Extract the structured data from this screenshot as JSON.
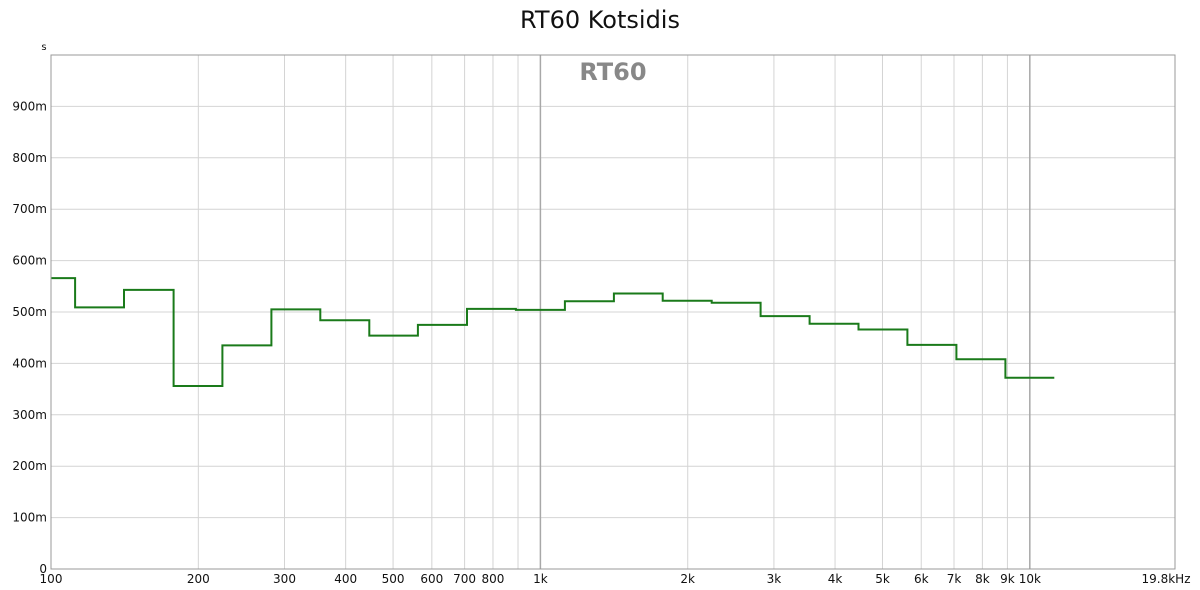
{
  "chart_data": {
    "type": "line",
    "title": "RT60 Kotsidis",
    "watermark": "RT60",
    "y_unit": "s",
    "x_unit_label": "19.8kHz",
    "x_scale": "log",
    "xlim": [
      100,
      19800
    ],
    "ylim": [
      0,
      1.0
    ],
    "grid": true,
    "line_color": "#1a7a1a",
    "y_ticks": [
      {
        "value": 0,
        "label": "0"
      },
      {
        "value": 0.1,
        "label": "100m"
      },
      {
        "value": 0.2,
        "label": "200m"
      },
      {
        "value": 0.3,
        "label": "300m"
      },
      {
        "value": 0.4,
        "label": "400m"
      },
      {
        "value": 0.5,
        "label": "500m"
      },
      {
        "value": 0.6,
        "label": "600m"
      },
      {
        "value": 0.7,
        "label": "700m"
      },
      {
        "value": 0.8,
        "label": "800m"
      },
      {
        "value": 0.9,
        "label": "900m"
      }
    ],
    "x_ticks": [
      {
        "value": 100,
        "label": "100"
      },
      {
        "value": 200,
        "label": "200"
      },
      {
        "value": 300,
        "label": "300"
      },
      {
        "value": 400,
        "label": "400"
      },
      {
        "value": 500,
        "label": "500"
      },
      {
        "value": 600,
        "label": "600"
      },
      {
        "value": 700,
        "label": "700"
      },
      {
        "value": 800,
        "label": "800"
      },
      {
        "value": 1000,
        "label": "1k"
      },
      {
        "value": 2000,
        "label": "2k"
      },
      {
        "value": 3000,
        "label": "3k"
      },
      {
        "value": 4000,
        "label": "4k"
      },
      {
        "value": 5000,
        "label": "5k"
      },
      {
        "value": 6000,
        "label": "6k"
      },
      {
        "value": 7000,
        "label": "7k"
      },
      {
        "value": 8000,
        "label": "8k"
      },
      {
        "value": 9000,
        "label": "9k"
      },
      {
        "value": 10000,
        "label": "10k"
      }
    ],
    "x_grid_lines": [
      100,
      200,
      300,
      400,
      500,
      600,
      700,
      800,
      900,
      1000,
      2000,
      3000,
      4000,
      5000,
      6000,
      7000,
      8000,
      9000,
      10000
    ],
    "x_major_grid_lines": [
      1000,
      10000
    ],
    "series": [
      {
        "steps": [
          {
            "f_start": 100,
            "f_end": 112,
            "value": 0.566
          },
          {
            "f_start": 112,
            "f_end": 141,
            "value": 0.509
          },
          {
            "f_start": 141,
            "f_end": 178,
            "value": 0.543
          },
          {
            "f_start": 178,
            "f_end": 224,
            "value": 0.356
          },
          {
            "f_start": 224,
            "f_end": 282,
            "value": 0.435
          },
          {
            "f_start": 282,
            "f_end": 355,
            "value": 0.505
          },
          {
            "f_start": 355,
            "f_end": 447,
            "value": 0.484
          },
          {
            "f_start": 447,
            "f_end": 562,
            "value": 0.454
          },
          {
            "f_start": 562,
            "f_end": 708,
            "value": 0.475
          },
          {
            "f_start": 708,
            "f_end": 891,
            "value": 0.506
          },
          {
            "f_start": 891,
            "f_end": 1122,
            "value": 0.504
          },
          {
            "f_start": 1122,
            "f_end": 1413,
            "value": 0.521
          },
          {
            "f_start": 1413,
            "f_end": 1778,
            "value": 0.536
          },
          {
            "f_start": 1778,
            "f_end": 2239,
            "value": 0.522
          },
          {
            "f_start": 2239,
            "f_end": 2818,
            "value": 0.518
          },
          {
            "f_start": 2818,
            "f_end": 3548,
            "value": 0.492
          },
          {
            "f_start": 3548,
            "f_end": 4467,
            "value": 0.477
          },
          {
            "f_start": 4467,
            "f_end": 5623,
            "value": 0.466
          },
          {
            "f_start": 5623,
            "f_end": 7079,
            "value": 0.436
          },
          {
            "f_start": 7079,
            "f_end": 8913,
            "value": 0.408
          },
          {
            "f_start": 8913,
            "f_end": 11220,
            "value": 0.372
          }
        ]
      }
    ]
  }
}
